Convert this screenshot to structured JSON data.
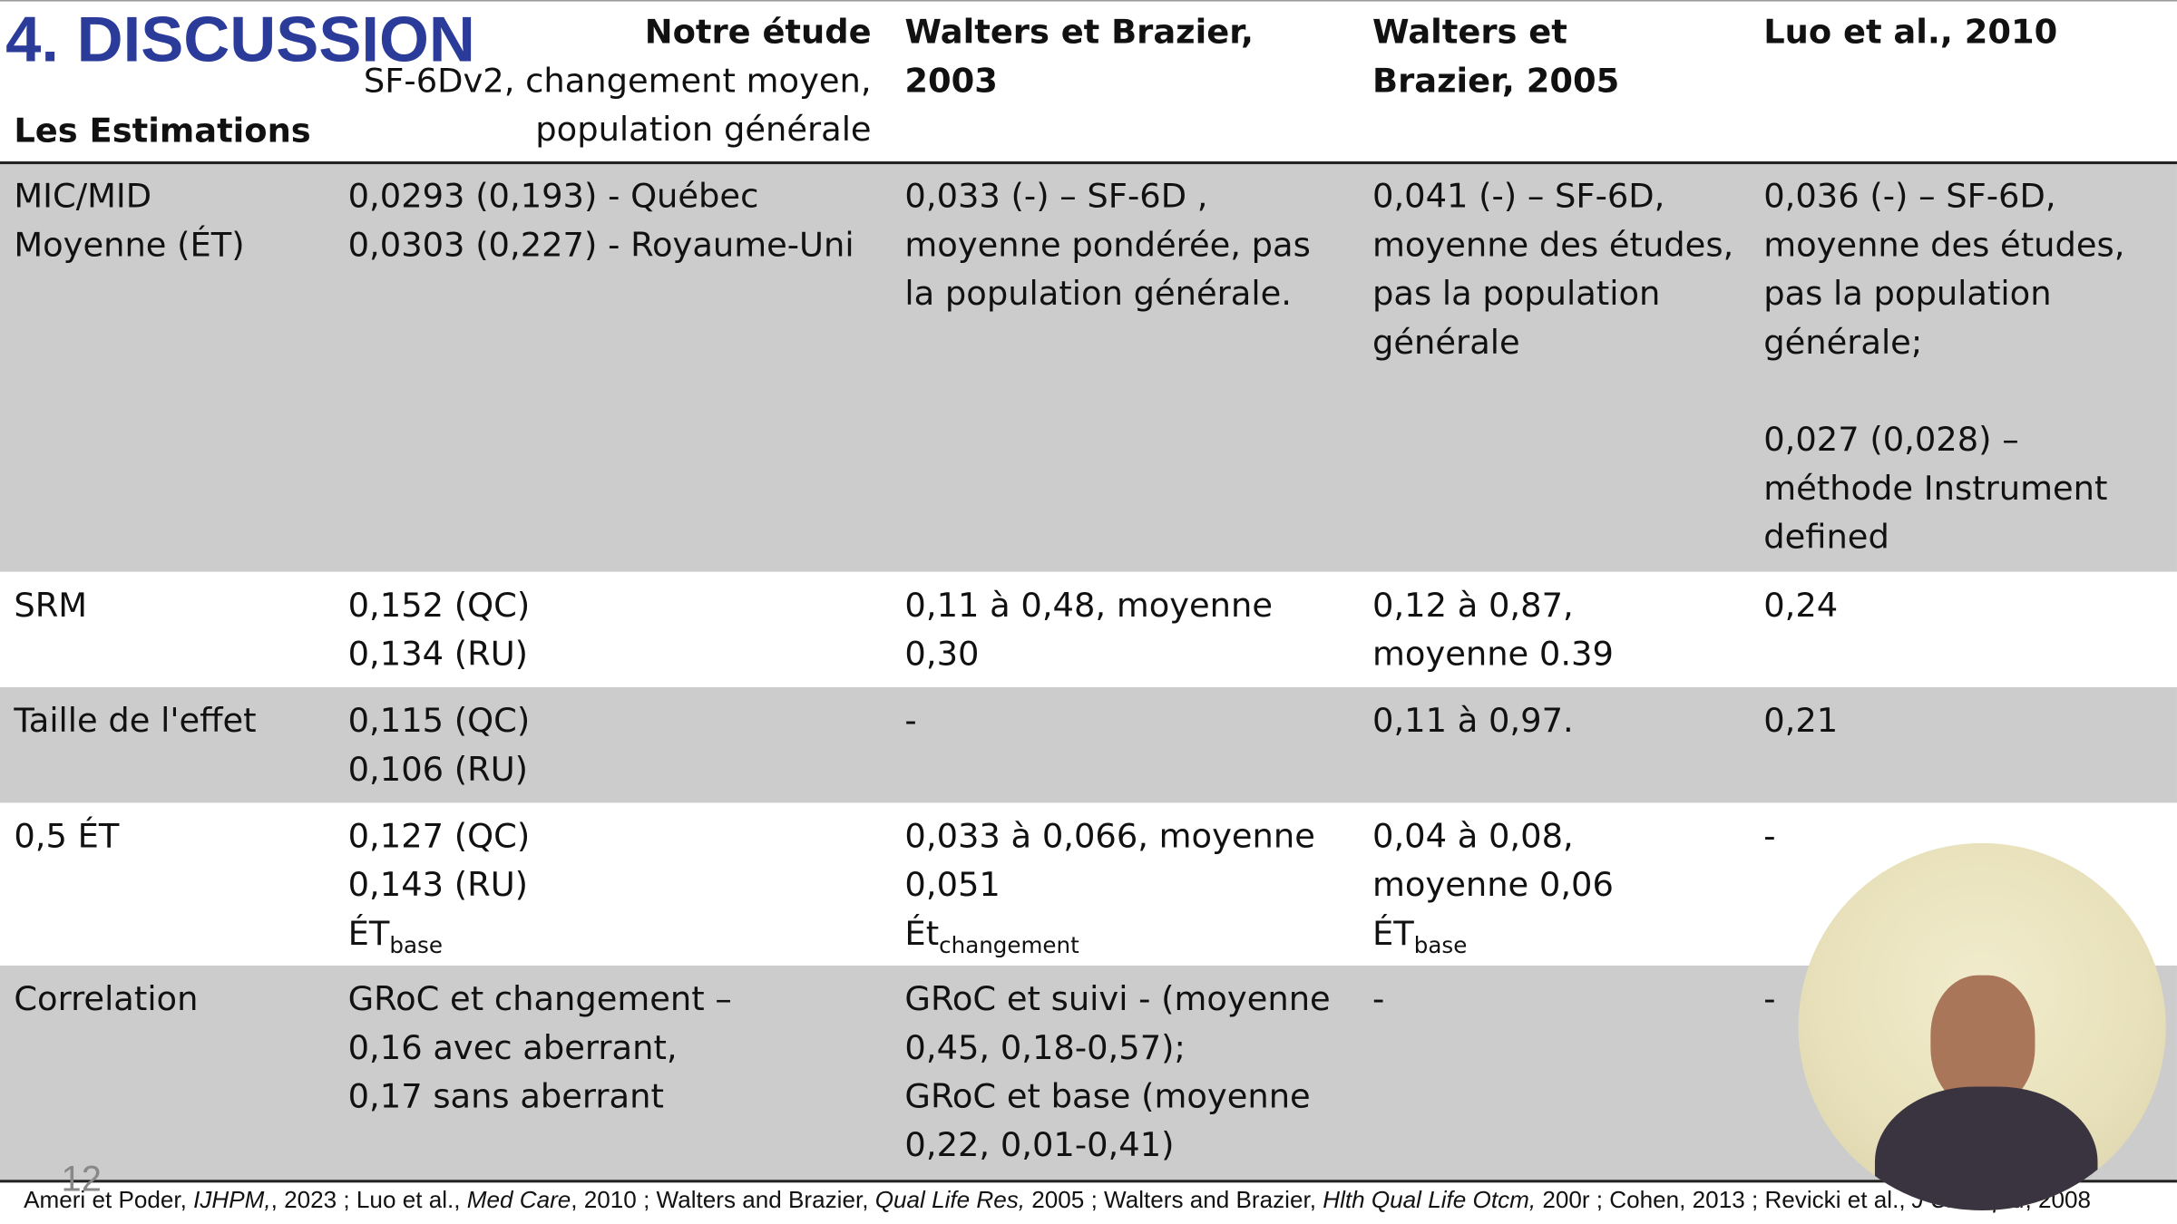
{
  "header": {
    "title": "4. DISCUSSION",
    "slide_number": "12"
  },
  "table": {
    "columns": [
      {
        "lines": [
          "Les Estimations"
        ]
      },
      {
        "title": "Notre étude",
        "lines": [
          "SF-6Dv2, changement moyen,",
          "population générale"
        ]
      },
      {
        "title": "Walters et Brazier, 2003"
      },
      {
        "title": "Walters et Brazier, 2005"
      },
      {
        "title": "Luo et al., 2010"
      }
    ],
    "rows": [
      [
        [
          [
            "MIC/MID",
            "Moyenne (ÉT)"
          ]
        ],
        [
          [
            "0,0293 (0,193) - Québec",
            "0,0303 (0,227) - Royaume-Uni"
          ]
        ],
        [
          [
            "0,033 (-) – SF-6D ,",
            "moyenne pondérée, pas",
            "la population générale."
          ]
        ],
        [
          [
            "0,041 (-) – SF-6D,",
            "moyenne des études,",
            "pas la population",
            "générale"
          ]
        ],
        [
          [
            "0,036 (-) – SF-6D,",
            "moyenne des études,",
            "pas la population",
            "générale;"
          ],
          [
            "0,027 (0,028) –",
            "méthode Instrument",
            "defined"
          ]
        ]
      ],
      [
        [
          [
            "SRM"
          ]
        ],
        [
          [
            "0,152 (QC)",
            "0,134 (RU)"
          ]
        ],
        [
          [
            "0,11 à 0,48, moyenne",
            "0,30"
          ]
        ],
        [
          [
            "0,12 à 0,87,",
            "moyenne 0.39"
          ]
        ],
        [
          [
            "0,24"
          ]
        ]
      ],
      [
        [
          [
            "Taille de l'effet"
          ]
        ],
        [
          [
            "0,115 (QC)",
            "0,106 (RU)"
          ]
        ],
        [
          [
            "-"
          ]
        ],
        [
          [
            "0,11 à 0,97."
          ]
        ],
        [
          [
            "0,21"
          ]
        ]
      ],
      [
        [
          [
            "0,5 ÉT"
          ]
        ],
        [
          [
            "0,127 (QC)",
            "0,143 (RU)",
            {
              "text": "ÉT",
              "sub": "base"
            }
          ]
        ],
        [
          [
            "0,033 à 0,066, moyenne",
            "0,051",
            {
              "text": "Ét",
              "sub": "changement"
            }
          ]
        ],
        [
          [
            "0,04 à 0,08,",
            "moyenne 0,06",
            {
              "text": "ÉT",
              "sub": "base"
            }
          ]
        ],
        [
          [
            "-"
          ]
        ]
      ],
      [
        [
          [
            "Correlation"
          ]
        ],
        [
          [
            "GRoC et changement –",
            "0,16 avec aberrant,",
            "0,17 sans aberrant"
          ]
        ],
        [
          [
            "GRoC et suivi - (moyenne",
            "0,45, 0,18-0,57);",
            "GRoC et base (moyenne",
            "0,22, 0,01-0,41)"
          ]
        ],
        [
          [
            "-"
          ]
        ],
        [
          [
            "-"
          ]
        ]
      ]
    ]
  },
  "footer": [
    {
      "text": "Ameri et Poder, "
    },
    {
      "text": "IJHPM,",
      "italic": true
    },
    {
      "text": ", 2023 ; Luo et al.,  "
    },
    {
      "text": "Med Care",
      "italic": true
    },
    {
      "text": ", 2010 ; Walters and Brazier, "
    },
    {
      "text": "Qual Life Res,",
      "italic": true
    },
    {
      "text": " 2005 ; Walters and Brazier, "
    },
    {
      "text": "Hlth Qual Life Otcm,",
      "italic": true
    },
    {
      "text": " 200r ; Cohen, 2013 ; Revicki et al., "
    },
    {
      "text": "J Clin Epid",
      "italic": true
    },
    {
      "text": ", 2008"
    }
  ]
}
